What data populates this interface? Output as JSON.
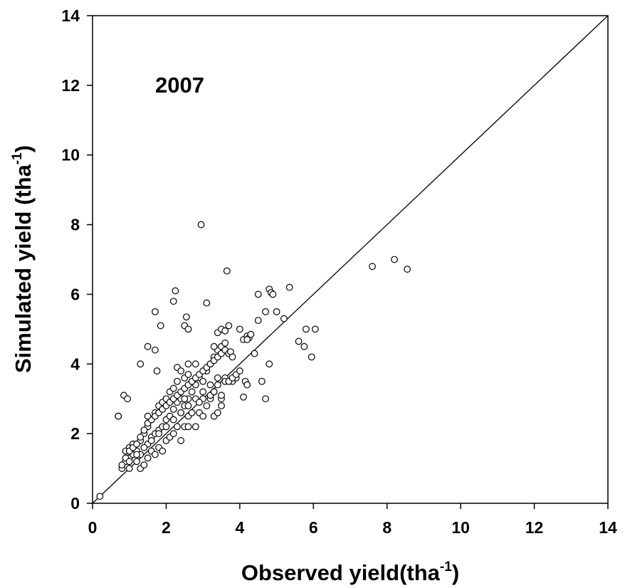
{
  "chart_data": {
    "type": "scatter",
    "annotation": "2007",
    "xlabel": "Observed yield(tha",
    "xlabel_sup": "-1",
    "xlabel_end": ")",
    "ylabel": "Simulated yield (tha",
    "ylabel_sup": "-1",
    "ylabel_end": ")",
    "xlim": [
      0,
      14
    ],
    "ylim": [
      0,
      14
    ],
    "xticks": [
      "0",
      "2",
      "4",
      "6",
      "8",
      "10",
      "12",
      "14"
    ],
    "yticks": [
      "0",
      "2",
      "4",
      "6",
      "8",
      "10",
      "12",
      "14"
    ],
    "grid": false,
    "reference_line": "1:1",
    "series": [
      {
        "x": [
          0.2,
          0.7,
          0.8,
          0.9,
          0.9,
          1.0,
          1.0,
          1.0,
          1.1,
          1.1,
          1.2,
          1.2,
          1.3,
          1.3,
          1.3,
          1.4,
          1.4,
          1.4,
          1.5,
          1.5,
          1.5,
          1.6,
          1.6,
          1.6,
          1.7,
          1.7,
          1.7,
          1.8,
          1.8,
          1.8,
          1.9,
          1.9,
          1.9,
          2.0,
          2.0,
          2.0,
          2.1,
          2.1,
          2.1,
          2.2,
          2.2,
          2.2,
          2.3,
          2.3,
          2.3,
          2.4,
          2.4,
          2.4,
          2.5,
          2.5,
          2.5,
          2.6,
          2.6,
          2.6,
          2.7,
          2.7,
          2.8,
          2.8,
          2.9,
          2.9,
          3.0,
          3.0,
          3.1,
          3.1,
          3.2,
          3.2,
          3.3,
          3.3,
          3.4,
          3.4,
          3.5,
          3.5,
          3.6,
          3.6,
          0.8,
          0.9,
          1.0,
          1.1,
          1.2,
          1.3,
          1.4,
          1.5,
          1.6,
          1.7,
          1.8,
          1.9,
          2.0,
          2.1,
          2.2,
          2.3,
          2.4,
          2.5,
          2.6,
          2.7,
          2.8,
          2.9,
          3.0,
          3.1,
          3.2,
          3.3,
          3.4,
          3.5,
          1.0,
          1.2,
          1.4,
          1.6,
          1.8,
          2.0,
          2.2,
          2.4,
          2.6,
          2.8,
          3.0,
          3.2,
          3.4,
          0.7,
          0.85,
          0.95,
          1.3,
          1.5,
          1.7,
          1.75,
          1.85,
          2.2,
          2.25,
          2.5,
          2.55,
          2.6,
          2.95,
          3.1,
          1.5,
          1.7,
          2.3,
          2.6,
          2.8,
          3.3,
          3.4,
          3.5,
          3.6,
          3.7,
          3.8,
          3.9,
          4.0,
          4.1,
          4.2,
          4.25,
          4.3,
          4.5,
          4.5,
          4.7,
          4.8,
          4.85,
          4.9,
          5.0,
          5.2,
          5.35,
          3.6,
          3.7,
          3.75,
          3.8,
          4.1,
          4.15,
          4.2,
          4.4,
          4.6,
          4.7,
          4.8,
          5.6,
          5.75,
          5.8,
          5.95,
          6.05,
          3.0,
          3.2,
          3.3,
          3.5,
          3.6,
          3.7,
          3.8,
          3.9,
          4.0,
          4.2,
          3.3,
          3.4,
          3.5,
          2.9,
          7.6,
          8.2,
          8.55,
          2.4,
          2.5,
          2.6,
          3.65
        ],
        "y": [
          0.2,
          2.5,
          1.0,
          1.2,
          1.5,
          1.0,
          1.3,
          1.6,
          1.4,
          1.7,
          1.2,
          1.5,
          1.0,
          1.4,
          1.8,
          1.1,
          1.6,
          2.0,
          1.3,
          1.7,
          2.2,
          1.5,
          1.9,
          2.4,
          1.4,
          2.0,
          2.6,
          1.6,
          2.1,
          2.8,
          1.5,
          2.2,
          2.9,
          1.8,
          2.4,
          3.0,
          1.9,
          2.5,
          3.2,
          2.0,
          2.7,
          3.3,
          2.2,
          2.9,
          3.5,
          1.8,
          2.6,
          3.0,
          2.2,
          2.8,
          3.6,
          2.5,
          3.0,
          3.7,
          2.6,
          3.2,
          2.2,
          3.4,
          2.6,
          3.6,
          2.5,
          3.5,
          2.8,
          3.8,
          3.0,
          4.0,
          3.2,
          4.2,
          3.4,
          4.4,
          3.0,
          4.5,
          3.6,
          4.6,
          1.1,
          1.3,
          1.5,
          1.6,
          1.7,
          1.9,
          2.1,
          2.3,
          2.4,
          2.5,
          2.6,
          2.7,
          2.8,
          2.9,
          3.0,
          3.1,
          3.2,
          3.3,
          3.4,
          3.5,
          3.6,
          3.7,
          3.8,
          3.9,
          4.0,
          4.1,
          4.2,
          4.3,
          1.2,
          1.4,
          1.6,
          1.8,
          2.0,
          2.2,
          2.4,
          2.6,
          2.8,
          3.0,
          3.2,
          3.4,
          3.6,
          2.5,
          3.1,
          3.0,
          4.0,
          4.5,
          4.4,
          3.8,
          5.1,
          5.8,
          6.1,
          5.1,
          5.35,
          5.0,
          8.0,
          5.75,
          2.5,
          5.5,
          3.9,
          4.0,
          4.0,
          4.5,
          4.9,
          5.0,
          4.95,
          5.1,
          3.5,
          3.6,
          5.0,
          4.7,
          4.8,
          4.75,
          4.85,
          5.25,
          6.0,
          5.5,
          6.15,
          6.05,
          6.0,
          5.5,
          5.3,
          6.2,
          4.4,
          4.3,
          4.35,
          4.2,
          3.05,
          3.5,
          3.4,
          4.3,
          3.5,
          3.0,
          4.0,
          4.65,
          4.5,
          5.0,
          4.2,
          5.0,
          3.0,
          3.1,
          3.2,
          3.1,
          3.5,
          3.5,
          3.6,
          3.7,
          3.8,
          4.7,
          2.5,
          2.6,
          2.8,
          2.9,
          6.8,
          7.0,
          6.72,
          3.8,
          3.0,
          2.2,
          6.67
        ]
      }
    ]
  }
}
